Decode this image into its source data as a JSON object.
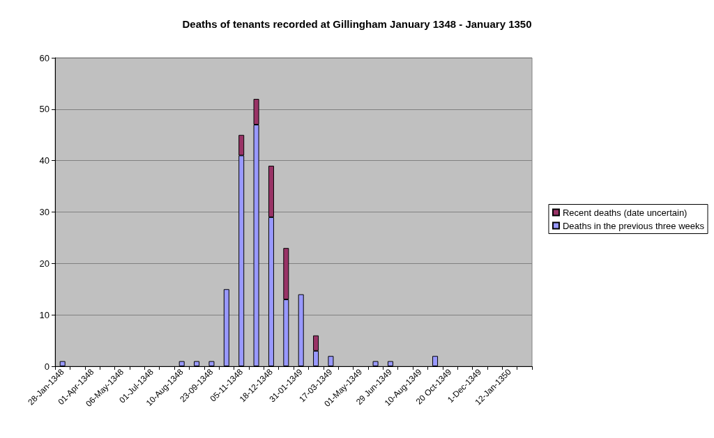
{
  "chart_data": {
    "type": "bar",
    "title": "Deaths of tenants recorded at Gillingham January 1348 - January 1350",
    "categories": [
      "28-Jan-1348",
      null,
      "01-Apr-1348",
      null,
      "06-May-1348",
      null,
      "01-Jul-1348",
      null,
      "10-Aug-1348",
      null,
      "23-09-1348",
      null,
      "05-11-1348",
      null,
      "18-12-1348",
      null,
      "31-01-1349",
      null,
      "17-03-1349",
      null,
      "01-May-1349",
      null,
      "29 Jun-1349",
      null,
      "10-Aug-1349",
      null,
      "20 Oct-1349",
      null,
      "1-Dec-1349",
      null,
      "12-Jan-1350",
      null
    ],
    "stacked": true,
    "series": [
      {
        "name": "Deaths in the previous three weeks",
        "color": "#9999ff",
        "values": [
          1,
          0,
          0,
          0,
          0,
          0,
          0,
          0,
          1,
          1,
          1,
          15,
          41,
          47,
          29,
          13,
          14,
          3,
          2,
          0,
          0,
          1,
          1,
          0,
          0,
          2,
          0,
          0,
          0,
          0,
          0,
          0
        ]
      },
      {
        "name": "Recent deaths (date uncertain)",
        "color": "#993366",
        "values": [
          0,
          0,
          0,
          0,
          0,
          0,
          0,
          0,
          0,
          0,
          0,
          0,
          4,
          5,
          10,
          10,
          0,
          3,
          0,
          0,
          0,
          0,
          0,
          0,
          0,
          0,
          0,
          0,
          0,
          0,
          0,
          0
        ]
      }
    ],
    "ylim": [
      0,
      60
    ],
    "yticks": [
      0,
      10,
      20,
      30,
      40,
      50,
      60
    ],
    "grid": "y",
    "legend": "right"
  }
}
